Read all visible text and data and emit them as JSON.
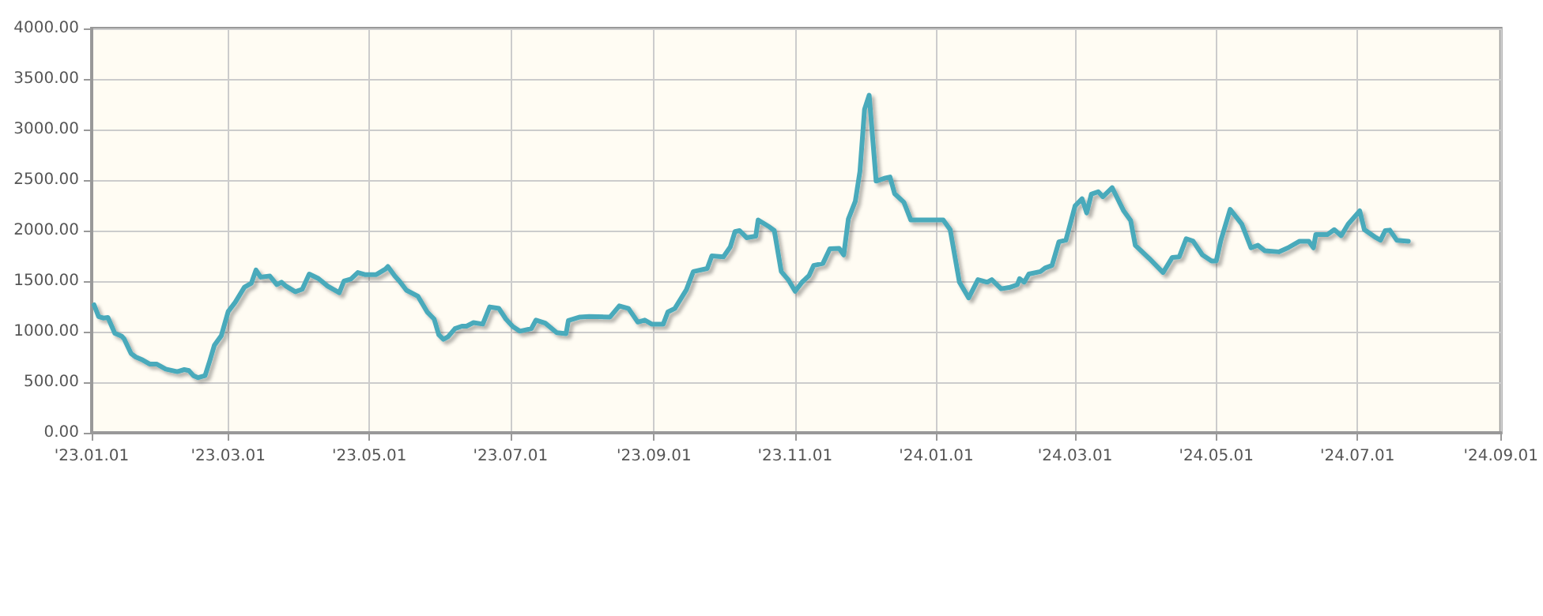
{
  "chart_data": {
    "type": "line",
    "x": [
      "2023-01-02",
      "2023-01-04",
      "2023-01-06",
      "2023-01-08",
      "2023-01-11",
      "2023-01-14",
      "2023-01-15",
      "2023-01-18",
      "2023-01-20",
      "2023-01-23",
      "2023-01-26",
      "2023-01-29",
      "2023-02-02",
      "2023-02-07",
      "2023-02-10",
      "2023-02-12",
      "2023-02-14",
      "2023-02-16",
      "2023-02-19",
      "2023-02-21",
      "2023-02-23",
      "2023-02-26",
      "2023-03-01",
      "2023-03-04",
      "2023-03-08",
      "2023-03-11",
      "2023-03-13",
      "2023-03-15",
      "2023-03-19",
      "2023-03-22",
      "2023-03-24",
      "2023-03-26",
      "2023-03-30",
      "2023-04-02",
      "2023-04-05",
      "2023-04-09",
      "2023-04-13",
      "2023-04-18",
      "2023-04-20",
      "2023-04-23",
      "2023-04-26",
      "2023-04-29",
      "2023-05-04",
      "2023-05-08",
      "2023-05-09",
      "2023-05-12",
      "2023-05-14",
      "2023-05-17",
      "2023-05-22",
      "2023-05-26",
      "2023-05-29",
      "2023-05-31",
      "2023-06-02",
      "2023-06-04",
      "2023-06-07",
      "2023-06-10",
      "2023-06-12",
      "2023-06-15",
      "2023-06-19",
      "2023-06-22",
      "2023-06-26",
      "2023-06-29",
      "2023-07-02",
      "2023-07-05",
      "2023-07-10",
      "2023-07-12",
      "2023-07-16",
      "2023-07-21",
      "2023-07-25",
      "2023-07-26",
      "2023-07-31",
      "2023-08-04",
      "2023-08-13",
      "2023-08-17",
      "2023-08-21",
      "2023-08-25",
      "2023-08-28",
      "2023-08-31",
      "2023-09-05",
      "2023-09-07",
      "2023-09-10",
      "2023-09-15",
      "2023-09-18",
      "2023-09-24",
      "2023-09-26",
      "2023-10-01",
      "2023-10-04",
      "2023-10-06",
      "2023-10-08",
      "2023-10-11",
      "2023-10-15",
      "2023-10-16",
      "2023-10-21",
      "2023-10-23",
      "2023-10-26",
      "2023-10-29",
      "2023-11-01",
      "2023-11-04",
      "2023-11-07",
      "2023-11-09",
      "2023-11-13",
      "2023-11-16",
      "2023-11-20",
      "2023-11-22",
      "2023-11-24",
      "2023-11-27",
      "2023-11-29",
      "2023-12-01",
      "2023-12-03",
      "2023-12-06",
      "2023-12-10",
      "2023-12-12",
      "2023-12-14",
      "2023-12-18",
      "2023-12-21",
      "2024-01-04",
      "2024-01-07",
      "2024-01-11",
      "2024-01-15",
      "2024-01-19",
      "2024-01-23",
      "2024-01-25",
      "2024-01-29",
      "2024-02-02",
      "2024-02-05",
      "2024-02-06",
      "2024-02-08",
      "2024-02-10",
      "2024-02-15",
      "2024-02-17",
      "2024-02-20",
      "2024-02-23",
      "2024-02-26",
      "2024-03-01",
      "2024-03-04",
      "2024-03-06",
      "2024-03-08",
      "2024-03-11",
      "2024-03-13",
      "2024-03-17",
      "2024-03-22",
      "2024-03-25",
      "2024-03-27",
      "2024-04-02",
      "2024-04-08",
      "2024-04-12",
      "2024-04-15",
      "2024-04-18",
      "2024-04-21",
      "2024-04-25",
      "2024-04-29",
      "2024-05-01",
      "2024-05-03",
      "2024-05-07",
      "2024-05-12",
      "2024-05-16",
      "2024-05-19",
      "2024-05-22",
      "2024-05-28",
      "2024-06-01",
      "2024-06-06",
      "2024-06-10",
      "2024-06-12",
      "2024-06-13",
      "2024-06-18",
      "2024-06-21",
      "2024-06-24",
      "2024-06-27",
      "2024-07-02",
      "2024-07-04",
      "2024-07-09",
      "2024-07-11",
      "2024-07-13",
      "2024-07-15",
      "2024-07-18",
      "2024-07-23"
    ],
    "series": [
      {
        "color": "#4aaabb",
        "values": [
          1266,
          1150,
          1135,
          1140,
          985,
          955,
          930,
          785,
          750,
          720,
          680,
          680,
          630,
          605,
          625,
          615,
          565,
          545,
          565,
          710,
          865,
          960,
          1200,
          1290,
          1440,
          1480,
          1610,
          1540,
          1550,
          1465,
          1490,
          1450,
          1395,
          1420,
          1570,
          1525,
          1450,
          1385,
          1500,
          1520,
          1585,
          1565,
          1565,
          1620,
          1645,
          1550,
          1500,
          1410,
          1350,
          1195,
          1125,
          970,
          925,
          950,
          1030,
          1055,
          1055,
          1090,
          1075,
          1245,
          1230,
          1125,
          1050,
          1005,
          1030,
          1115,
          1085,
          990,
          980,
          1110,
          1145,
          1150,
          1145,
          1255,
          1230,
          1095,
          1115,
          1075,
          1075,
          1195,
          1230,
          1415,
          1595,
          1625,
          1750,
          1740,
          1840,
          1990,
          2000,
          1930,
          1945,
          2105,
          2035,
          2000,
          1595,
          1515,
          1400,
          1490,
          1555,
          1655,
          1675,
          1820,
          1825,
          1760,
          2115,
          2290,
          2585,
          3200,
          3340,
          2490,
          2520,
          2530,
          2365,
          2280,
          2105,
          2105,
          2010,
          1490,
          1335,
          1515,
          1490,
          1515,
          1425,
          1440,
          1465,
          1525,
          1490,
          1570,
          1595,
          1630,
          1655,
          1890,
          1905,
          2245,
          2315,
          2175,
          2360,
          2385,
          2335,
          2425,
          2195,
          2100,
          1855,
          1725,
          1585,
          1735,
          1740,
          1920,
          1895,
          1760,
          1700,
          1700,
          1905,
          2210,
          2065,
          1830,
          1855,
          1800,
          1790,
          1830,
          1895,
          1895,
          1830,
          1960,
          1960,
          2010,
          1950,
          2065,
          2195,
          2010,
          1930,
          1905,
          2000,
          2005,
          1905,
          1895
        ]
      }
    ],
    "xlim": [
      "2023-01-01",
      "2024-09-01"
    ],
    "xticks": [
      {
        "value": "2023-01-01",
        "label": "'23.01.01"
      },
      {
        "value": "2023-03-01",
        "label": "'23.03.01"
      },
      {
        "value": "2023-05-01",
        "label": "'23.05.01"
      },
      {
        "value": "2023-07-01",
        "label": "'23.07.01"
      },
      {
        "value": "2023-09-01",
        "label": "'23.09.01"
      },
      {
        "value": "2023-11-01",
        "label": "'23.11.01"
      },
      {
        "value": "2024-01-01",
        "label": "'24.01.01"
      },
      {
        "value": "2024-03-01",
        "label": "'24.03.01"
      },
      {
        "value": "2024-05-01",
        "label": "'24.05.01"
      },
      {
        "value": "2024-07-01",
        "label": "'24.07.01"
      },
      {
        "value": "2024-09-01",
        "label": "'24.09.01"
      }
    ],
    "ylim": [
      0,
      4000
    ],
    "yticks": [
      {
        "value": 0,
        "label": "0.00"
      },
      {
        "value": 500,
        "label": "500.00"
      },
      {
        "value": 1000,
        "label": "1000.00"
      },
      {
        "value": 1500,
        "label": "1500.00"
      },
      {
        "value": 2000,
        "label": "2000.00"
      },
      {
        "value": 2500,
        "label": "2500.00"
      },
      {
        "value": 3000,
        "label": "3000.00"
      },
      {
        "value": 3500,
        "label": "3500.00"
      },
      {
        "value": 4000,
        "label": "4000.00"
      }
    ],
    "grid": true,
    "marker": "none",
    "line_style": "solid"
  }
}
